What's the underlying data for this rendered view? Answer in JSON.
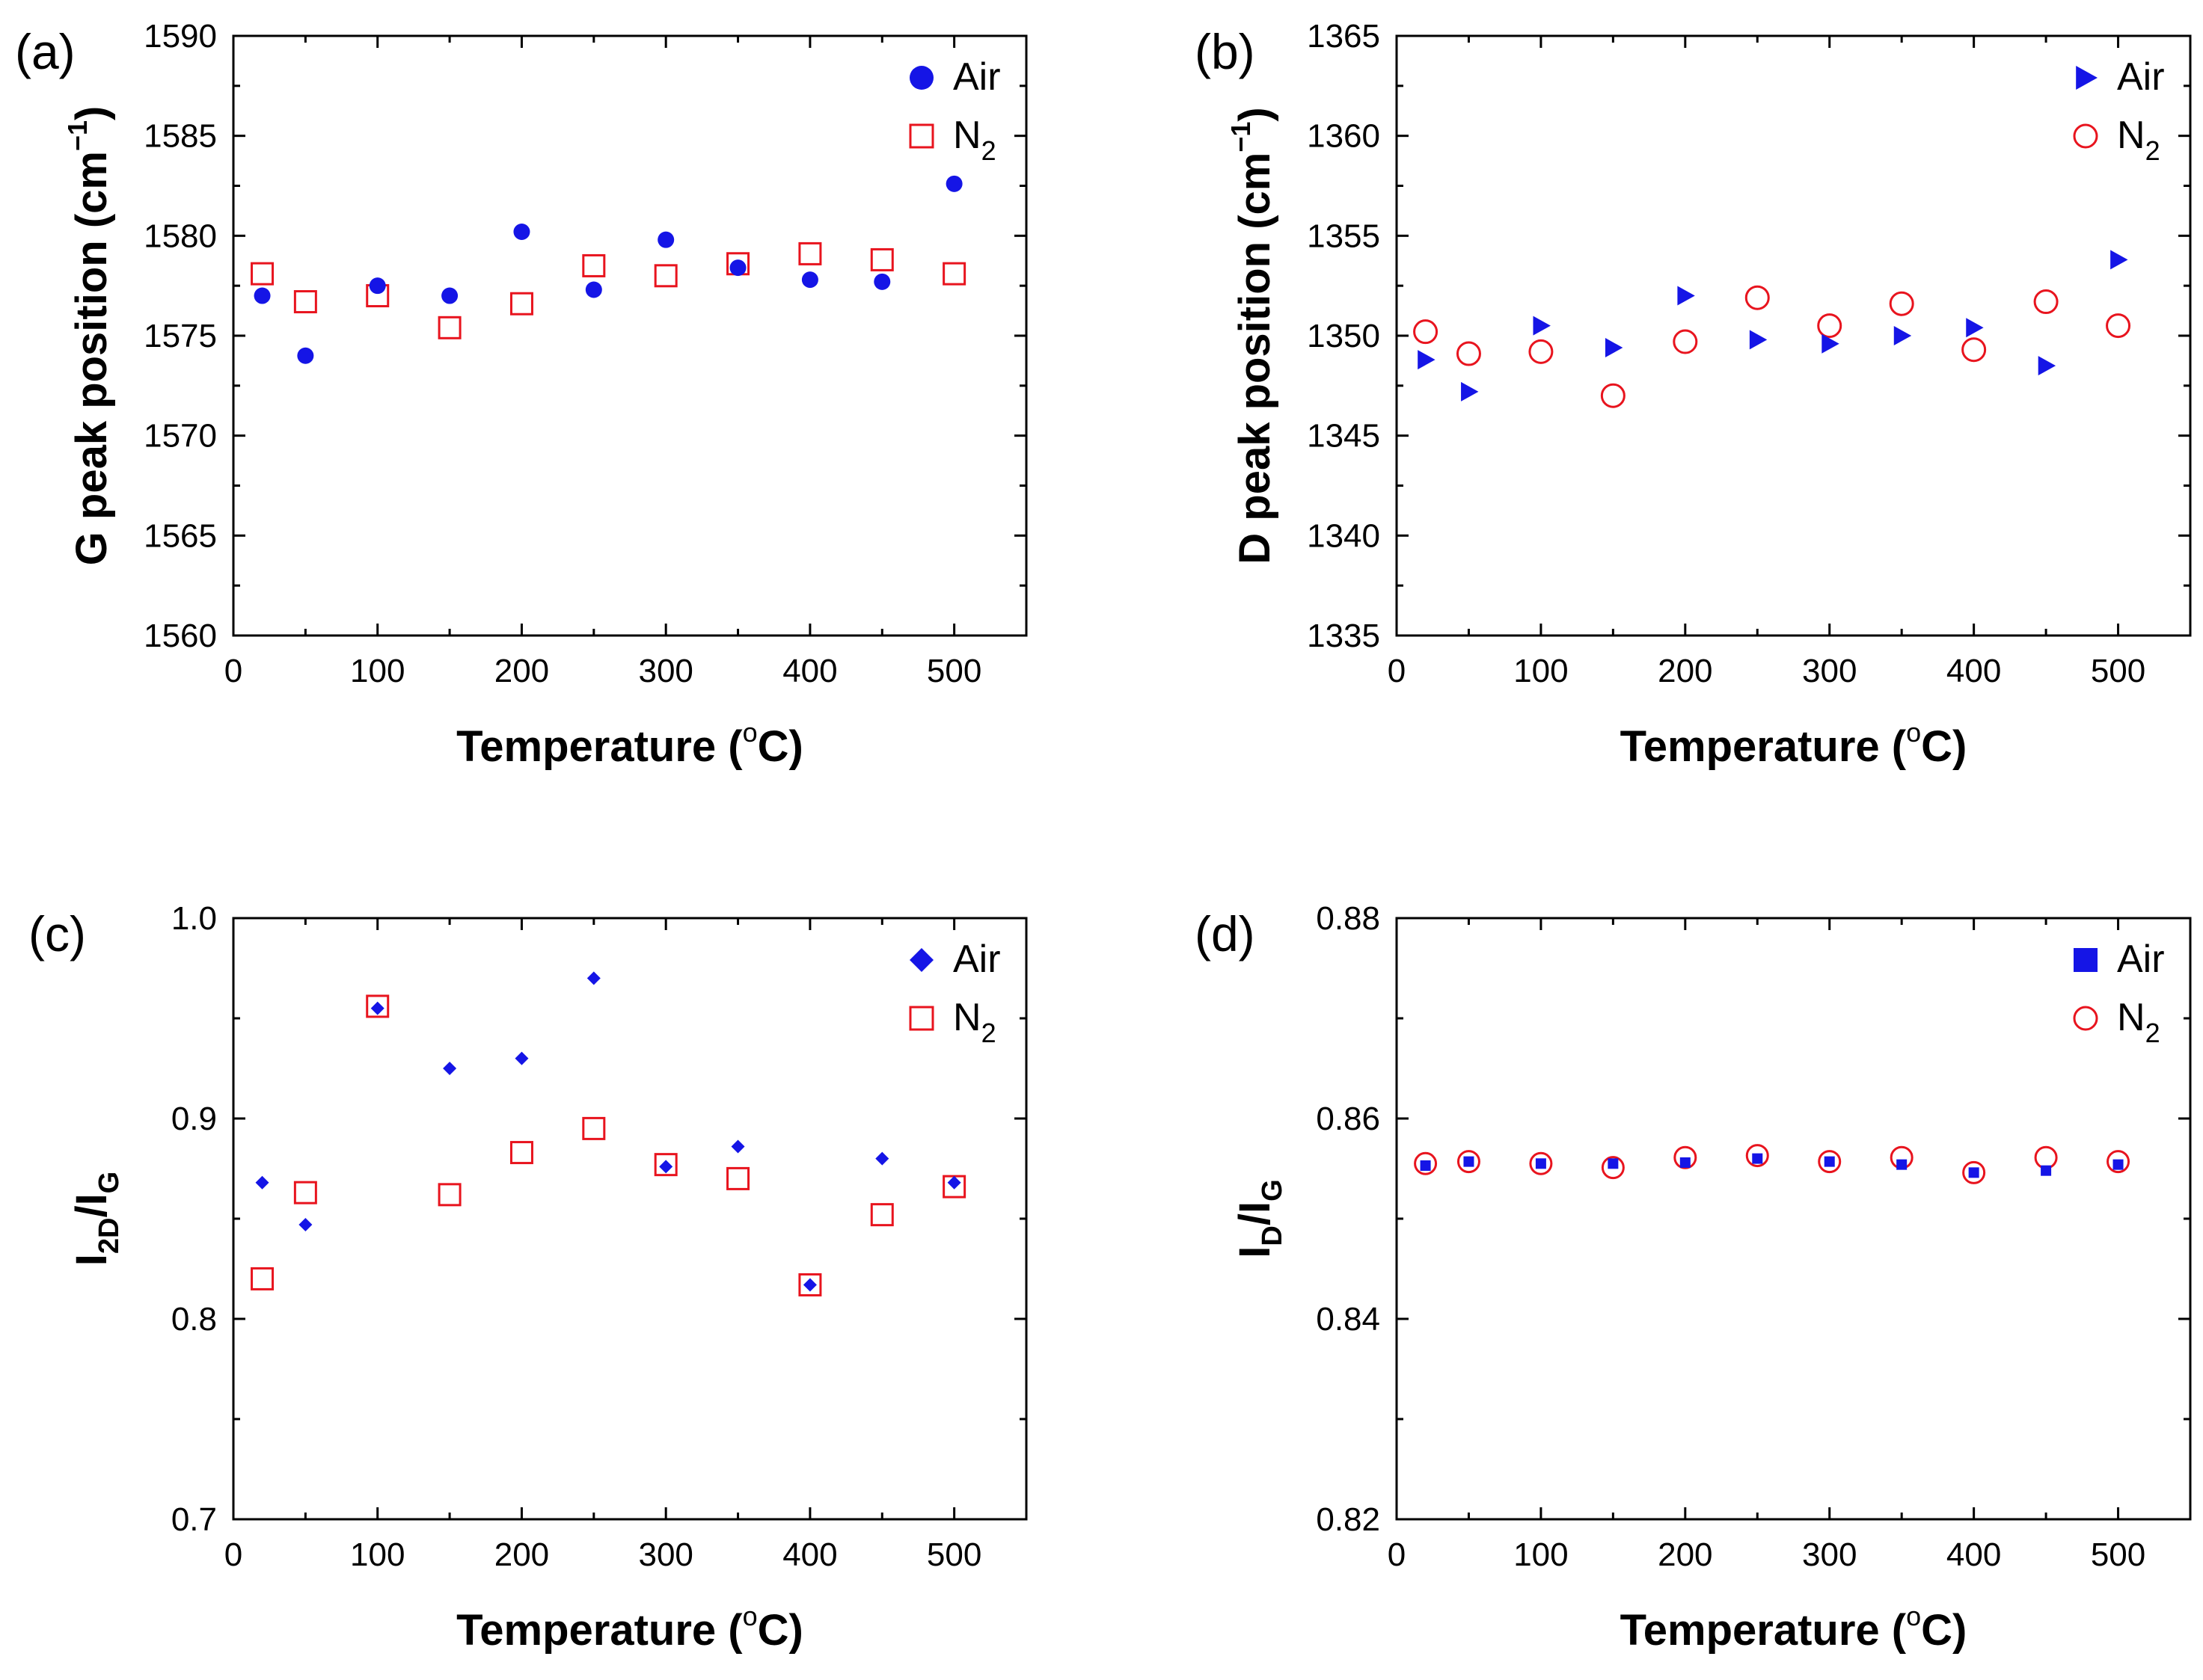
{
  "figure": {
    "description": "Four-panel scatter plot figure"
  },
  "colors": {
    "air": "#1515e6",
    "n2": "#e8141e",
    "axis": "#000000"
  },
  "chart_data": [
    {
      "id": "a",
      "type": "scatter",
      "panel_label": "(a)",
      "xlabel": "Temperature (",
      "xlabel_sup": "o",
      "xlabel_end": "C)",
      "ylabel": "G peak position (cm",
      "ylabel_sup": "−1",
      "ylabel_end": ")",
      "xlim": [
        0,
        550
      ],
      "ylim": [
        1560,
        1590
      ],
      "xticks": [
        0,
        100,
        200,
        300,
        400,
        500
      ],
      "xtick_labels": [
        "0",
        "100",
        "200",
        "300",
        "400",
        "500"
      ],
      "yticks": [
        1560,
        1565,
        1570,
        1575,
        1580,
        1585,
        1590
      ],
      "ytick_labels": [
        "1560",
        "1565",
        "1570",
        "1575",
        "1580",
        "1585",
        "1590"
      ],
      "legend_position": "top-right",
      "series": [
        {
          "name": "Air",
          "sub": "",
          "marker": "circle",
          "filled": true,
          "color": "#1515e6",
          "x": [
            20,
            50,
            100,
            150,
            200,
            250,
            300,
            350,
            400,
            450,
            500
          ],
          "y": [
            1577.0,
            1574.0,
            1577.5,
            1577.0,
            1580.2,
            1577.3,
            1579.8,
            1578.4,
            1577.8,
            1577.7,
            1582.6
          ]
        },
        {
          "name": "N",
          "sub": "2",
          "marker": "square",
          "filled": false,
          "color": "#e8141e",
          "x": [
            20,
            50,
            100,
            150,
            200,
            250,
            300,
            350,
            400,
            450,
            500
          ],
          "y": [
            1578.1,
            1576.7,
            1577.0,
            1575.4,
            1576.6,
            1578.5,
            1578.0,
            1578.6,
            1579.1,
            1578.8,
            1578.1
          ]
        }
      ]
    },
    {
      "id": "b",
      "type": "scatter",
      "panel_label": "(b)",
      "xlabel": "Temperature (",
      "xlabel_sup": "o",
      "xlabel_end": "C)",
      "ylabel": "D peak position (cm",
      "ylabel_sup": "−1",
      "ylabel_end": ")",
      "xlim": [
        0,
        550
      ],
      "ylim": [
        1335,
        1365
      ],
      "xticks": [
        0,
        100,
        200,
        300,
        400,
        500
      ],
      "xtick_labels": [
        "0",
        "100",
        "200",
        "300",
        "400",
        "500"
      ],
      "yticks": [
        1335,
        1340,
        1345,
        1350,
        1355,
        1360,
        1365
      ],
      "ytick_labels": [
        "1335",
        "1340",
        "1345",
        "1350",
        "1355",
        "1360",
        "1365"
      ],
      "legend_position": "top-right",
      "series": [
        {
          "name": "Air",
          "sub": "",
          "marker": "triangle-right",
          "filled": true,
          "color": "#1515e6",
          "x": [
            20,
            50,
            100,
            150,
            200,
            250,
            300,
            350,
            400,
            450,
            500
          ],
          "y": [
            1348.8,
            1347.2,
            1350.5,
            1349.4,
            1352.0,
            1349.8,
            1349.6,
            1350.0,
            1350.4,
            1348.5,
            1353.8
          ]
        },
        {
          "name": "N",
          "sub": "2",
          "marker": "circle",
          "filled": false,
          "color": "#e8141e",
          "x": [
            20,
            50,
            100,
            150,
            200,
            250,
            300,
            350,
            400,
            450,
            500
          ],
          "y": [
            1350.2,
            1349.1,
            1349.2,
            1347.0,
            1349.7,
            1351.9,
            1350.5,
            1351.6,
            1349.3,
            1351.7,
            1350.5
          ]
        }
      ]
    },
    {
      "id": "c",
      "type": "scatter",
      "panel_label": "(c)",
      "xlabel": "Temperature (",
      "xlabel_sup": "o",
      "xlabel_end": "C)",
      "ylabel": "I",
      "ylabel_sub1": "2D",
      "ylabel_mid": "/I",
      "ylabel_sub2": "G",
      "xlim": [
        0,
        550
      ],
      "ylim": [
        0.7,
        1.0
      ],
      "xticks": [
        0,
        100,
        200,
        300,
        400,
        500
      ],
      "xtick_labels": [
        "0",
        "100",
        "200",
        "300",
        "400",
        "500"
      ],
      "yticks": [
        0.7,
        0.8,
        0.9,
        1.0
      ],
      "ytick_labels": [
        "0.7",
        "0.8",
        "0.9",
        "1.0"
      ],
      "legend_position": "top-right",
      "series": [
        {
          "name": "Air",
          "sub": "",
          "marker": "diamond",
          "filled": true,
          "color": "#1515e6",
          "x": [
            20,
            50,
            100,
            150,
            200,
            250,
            300,
            350,
            400,
            450,
            500
          ],
          "y": [
            0.868,
            0.847,
            0.955,
            0.925,
            0.93,
            0.97,
            0.876,
            0.886,
            0.817,
            0.88,
            0.868
          ]
        },
        {
          "name": "N",
          "sub": "2",
          "marker": "square",
          "filled": false,
          "color": "#e8141e",
          "x": [
            20,
            50,
            100,
            150,
            200,
            250,
            300,
            350,
            400,
            450,
            500
          ],
          "y": [
            0.82,
            0.863,
            0.956,
            0.862,
            0.883,
            0.895,
            0.877,
            0.87,
            0.817,
            0.852,
            0.866
          ]
        }
      ]
    },
    {
      "id": "d",
      "type": "scatter",
      "panel_label": "(d)",
      "xlabel": "Temperature (",
      "xlabel_sup": "o",
      "xlabel_end": "C)",
      "ylabel": "I",
      "ylabel_sub1": "D",
      "ylabel_mid": "/I",
      "ylabel_sub2": "G",
      "xlim": [
        0,
        550
      ],
      "ylim": [
        0.82,
        0.88
      ],
      "xticks": [
        0,
        100,
        200,
        300,
        400,
        500
      ],
      "xtick_labels": [
        "0",
        "100",
        "200",
        "300",
        "400",
        "500"
      ],
      "yticks": [
        0.82,
        0.84,
        0.86,
        0.88
      ],
      "ytick_labels": [
        "0.82",
        "0.84",
        "0.86",
        "0.88"
      ],
      "legend_position": "top-right",
      "series": [
        {
          "name": "Air",
          "sub": "",
          "marker": "square",
          "filled": true,
          "color": "#1515e6",
          "x": [
            20,
            50,
            100,
            150,
            200,
            250,
            300,
            350,
            400,
            450,
            500
          ],
          "y": [
            0.8553,
            0.8557,
            0.8555,
            0.8555,
            0.8556,
            0.856,
            0.8557,
            0.8554,
            0.8546,
            0.8548,
            0.8554
          ]
        },
        {
          "name": "N",
          "sub": "2",
          "marker": "circle",
          "filled": false,
          "color": "#e8141e",
          "x": [
            20,
            50,
            100,
            150,
            200,
            250,
            300,
            350,
            400,
            450,
            500
          ],
          "y": [
            0.8555,
            0.8557,
            0.8555,
            0.8551,
            0.8561,
            0.8563,
            0.8557,
            0.8561,
            0.8546,
            0.8561,
            0.8557
          ]
        }
      ]
    }
  ]
}
